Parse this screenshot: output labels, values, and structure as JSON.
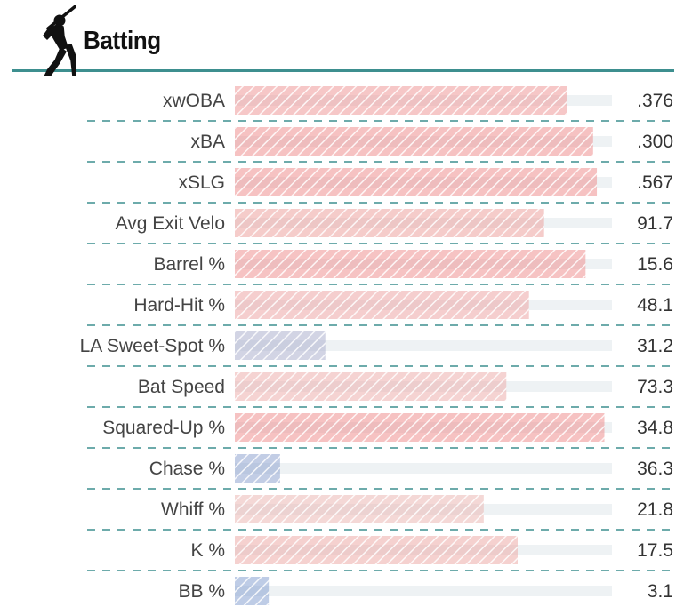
{
  "header": {
    "title": "Batting",
    "icon": "batter-silhouette-icon"
  },
  "colors": {
    "accent": "#3d8f8f",
    "track": "#eef2f4",
    "high": "#ef8f8f",
    "mid": "#e9cdc8",
    "low": "#7f9dd2"
  },
  "chart_data": {
    "type": "bar",
    "orientation": "horizontal",
    "scale": "percentile",
    "xlim": [
      0,
      100
    ],
    "categories": [
      "xwOBA",
      "xBA",
      "xSLG",
      "Avg Exit Velo",
      "Barrel %",
      "Hard-Hit %",
      "LA Sweet-Spot %",
      "Bat Speed",
      "Squared-Up %",
      "Chase %",
      "Whiff %",
      "K %",
      "BB %"
    ],
    "values": [
      88,
      95,
      96,
      82,
      93,
      78,
      24,
      72,
      98,
      12,
      66,
      75,
      9
    ],
    "value_labels": [
      ".376",
      ".300",
      ".567",
      "91.7",
      "15.6",
      "48.1",
      "31.2",
      "73.3",
      "34.8",
      "36.3",
      "21.8",
      "17.5",
      "3.1"
    ]
  }
}
